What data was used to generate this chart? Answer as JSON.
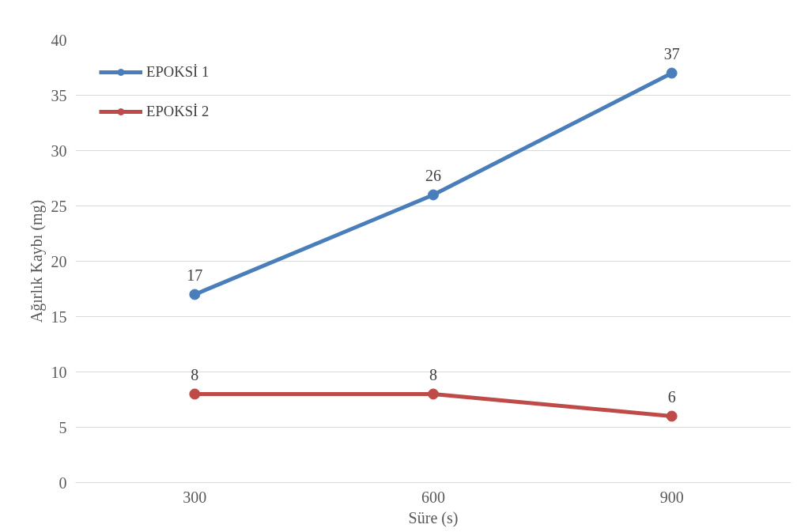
{
  "chart_data": {
    "type": "line",
    "xlabel": "Süre (s)",
    "ylabel": "Ağırlık Kaybı (mg)",
    "categories": [
      "300",
      "600",
      "900"
    ],
    "series": [
      {
        "name": "EPOKSİ 1",
        "color": "#4a7ebb",
        "values": [
          17,
          26,
          37
        ]
      },
      {
        "name": "EPOKSİ 2",
        "color": "#be4b48",
        "values": [
          8,
          8,
          6
        ]
      }
    ],
    "ylim": [
      0,
      40
    ],
    "yticks": [
      0,
      5,
      10,
      15,
      20,
      25,
      30,
      35,
      40
    ],
    "grid": "y",
    "legend": "top left",
    "marker": "circle",
    "line_style": "solid",
    "data_labels": true
  }
}
